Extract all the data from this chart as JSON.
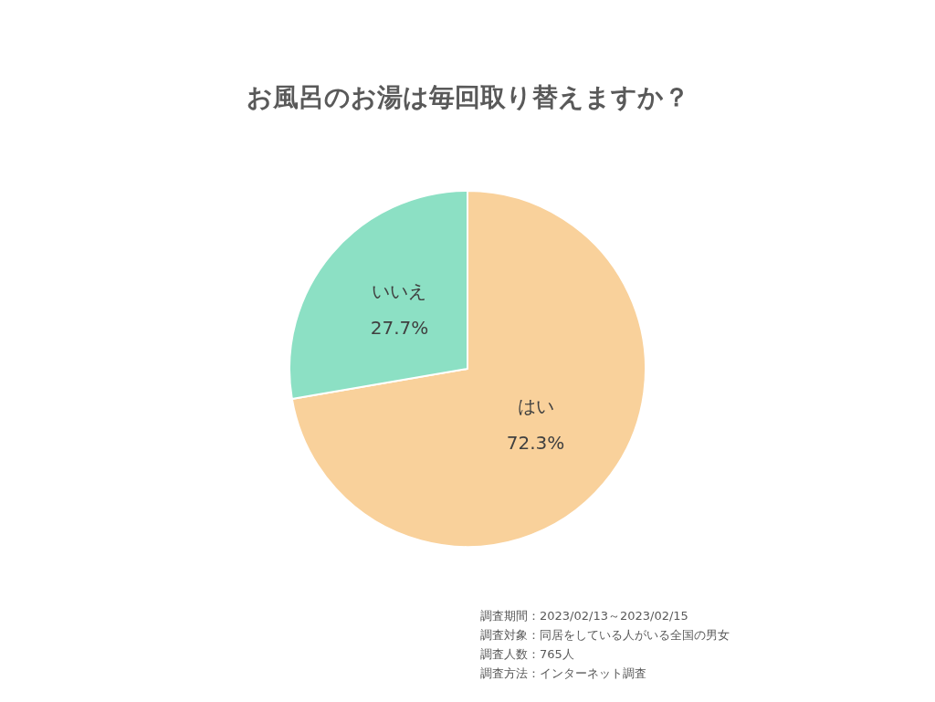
{
  "chart_data": {
    "type": "pie",
    "title": "お風呂のお湯は毎回取り替えますか？",
    "categories": [
      "はい",
      "いいえ"
    ],
    "values": [
      72.3,
      27.7
    ],
    "value_labels": [
      "72.3%",
      "27.7%"
    ],
    "colors": [
      "#f9d19b",
      "#8ce0c4"
    ],
    "annotations": [
      "調査期間：2023/02/13～2023/02/15",
      "調査対象：同居をしている人がいる全国の男女",
      "調査人数：765人",
      "調査方法：インターネット調査"
    ]
  }
}
